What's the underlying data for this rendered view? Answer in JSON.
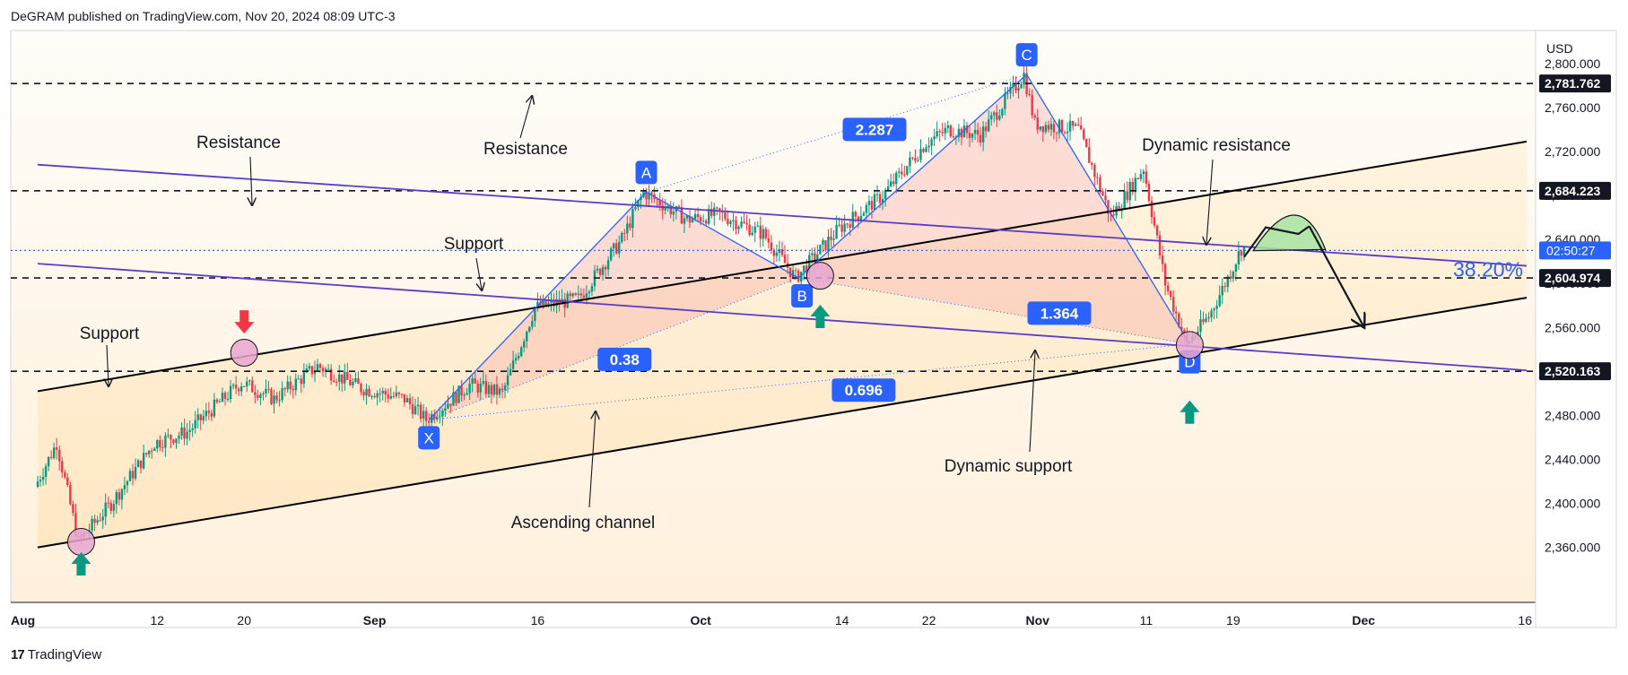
{
  "header": {
    "published": "DeGRAM published on TradingView.com, Nov 20, 2024 08:09 UTC-3"
  },
  "footer": {
    "brand": "TradingView",
    "logo": "17"
  },
  "chart_data": {
    "type": "candlestick",
    "currency": "USD",
    "ylim": [
      2310,
      2830
    ],
    "y_ticks": [
      2360,
      2400,
      2440,
      2480,
      2520,
      2560,
      2600,
      2640,
      2680,
      2720,
      2760,
      2800
    ],
    "y_tick_labels": [
      "2,360.000",
      "2,400.000",
      "2,440.000",
      "2,480.000",
      "2,520.000",
      "2,560.000",
      "2,600.000",
      "2,640.000",
      "2,680.000",
      "2,720.000",
      "2,760.000",
      "2,800.000"
    ],
    "x_ticks": [
      {
        "label": "Aug",
        "date": "2024-08-01"
      },
      {
        "label": "12",
        "date": "2024-08-12"
      },
      {
        "label": "20",
        "date": "2024-08-20"
      },
      {
        "label": "Sep",
        "date": "2024-09-01"
      },
      {
        "label": "16",
        "date": "2024-09-16"
      },
      {
        "label": "Oct",
        "date": "2024-10-01"
      },
      {
        "label": "14",
        "date": "2024-10-14"
      },
      {
        "label": "22",
        "date": "2024-10-22"
      },
      {
        "label": "Nov",
        "date": "2024-11-01"
      },
      {
        "label": "11",
        "date": "2024-11-11"
      },
      {
        "label": "19",
        "date": "2024-11-19"
      },
      {
        "label": "Dec",
        "date": "2024-12-01"
      },
      {
        "label": "16",
        "date": "2024-12-16"
      }
    ],
    "x_range": [
      "2024-08-01",
      "2024-12-16"
    ],
    "price_path": [
      [
        "2024-08-01",
        2415
      ],
      [
        "2024-08-03",
        2455
      ],
      [
        "2024-08-05",
        2365
      ],
      [
        "2024-08-08",
        2400
      ],
      [
        "2024-08-12",
        2455
      ],
      [
        "2024-08-15",
        2465
      ],
      [
        "2024-08-20",
        2510
      ],
      [
        "2024-08-23",
        2495
      ],
      [
        "2024-08-27",
        2525
      ],
      [
        "2024-08-31",
        2505
      ],
      [
        "2024-09-04",
        2495
      ],
      [
        "2024-09-06",
        2476
      ],
      [
        "2024-09-10",
        2508
      ],
      [
        "2024-09-13",
        2500
      ],
      [
        "2024-09-16",
        2578
      ],
      [
        "2024-09-20",
        2586
      ],
      [
        "2024-09-24",
        2640
      ],
      [
        "2024-09-26",
        2683
      ],
      [
        "2024-09-30",
        2658
      ],
      [
        "2024-10-03",
        2663
      ],
      [
        "2024-10-07",
        2645
      ],
      [
        "2024-10-10",
        2605
      ],
      [
        "2024-10-14",
        2650
      ],
      [
        "2024-10-18",
        2680
      ],
      [
        "2024-10-22",
        2728
      ],
      [
        "2024-10-24",
        2740
      ],
      [
        "2024-10-27",
        2735
      ],
      [
        "2024-10-31",
        2790
      ],
      [
        "2024-11-01",
        2745
      ],
      [
        "2024-11-05",
        2740
      ],
      [
        "2024-11-08",
        2660
      ],
      [
        "2024-11-11",
        2705
      ],
      [
        "2024-11-13",
        2600
      ],
      [
        "2024-11-15",
        2545
      ],
      [
        "2024-11-17",
        2570
      ],
      [
        "2024-11-19",
        2610
      ],
      [
        "2024-11-20",
        2632
      ]
    ],
    "horizontal_levels": [
      {
        "price": 2781.762,
        "label": "2,781.762"
      },
      {
        "price": 2684.223,
        "label": "2,684.223"
      },
      {
        "price": 2604.974,
        "label": "2,604.974"
      },
      {
        "price": 2520.163,
        "label": "2,520.163"
      }
    ],
    "current_price": {
      "price": 2630,
      "label": "02:50:27"
    },
    "xabcd_pattern": {
      "points": [
        {
          "label": "X",
          "date": "2024-09-06",
          "price": 2476
        },
        {
          "label": "A",
          "date": "2024-09-26",
          "price": 2683
        },
        {
          "label": "B",
          "date": "2024-10-10",
          "price": 2605
        },
        {
          "label": "C",
          "date": "2024-10-31",
          "price": 2790
        },
        {
          "label": "D",
          "date": "2024-11-15",
          "price": 2545
        }
      ],
      "ratios": [
        {
          "value": "0.38",
          "date": "2024-09-24",
          "price": 2531
        },
        {
          "value": "2.287",
          "date": "2024-10-17",
          "price": 2740
        },
        {
          "value": "1.364",
          "date": "2024-11-03",
          "price": 2573
        },
        {
          "value": "0.696",
          "date": "2024-10-16",
          "price": 2503
        }
      ]
    },
    "channel": {
      "lower": [
        [
          "2024-08-01",
          2360
        ],
        [
          "2024-12-16",
          2587
        ]
      ],
      "upper": [
        [
          "2024-08-01",
          2502
        ],
        [
          "2024-12-16",
          2729
        ]
      ]
    },
    "descending_lines": {
      "resistance": [
        [
          "2024-08-01",
          2708
        ],
        [
          "2024-12-16",
          2616
        ]
      ],
      "support": [
        [
          "2024-08-01",
          2618
        ],
        [
          "2024-12-16",
          2521
        ]
      ]
    },
    "forecast": [
      [
        "2024-11-20",
        2624
      ],
      [
        "2024-11-22",
        2651
      ],
      [
        "2024-11-25",
        2645
      ],
      [
        "2024-11-26",
        2652
      ],
      [
        "2024-12-01",
        2561
      ]
    ],
    "fib_label": "38.20%",
    "annotations": [
      {
        "text": "Resistance",
        "id": "res-left"
      },
      {
        "text": "Resistance",
        "id": "res-top"
      },
      {
        "text": "Support",
        "id": "sup-mid"
      },
      {
        "text": "Support",
        "id": "sup-left"
      },
      {
        "text": "Dynamic resistance",
        "id": "dyn-res"
      },
      {
        "text": "Dynamic support",
        "id": "dyn-sup"
      },
      {
        "text": "Ascending channel",
        "id": "asc-channel"
      }
    ],
    "markers": {
      "up_arrows": [
        [
          "2024-08-05",
          2345
        ],
        [
          "2024-10-12",
          2570
        ],
        [
          "2024-11-15",
          2483
        ]
      ],
      "down_arrows": [
        [
          "2024-08-20",
          2565
        ]
      ],
      "circles": [
        [
          "2024-08-05",
          2365
        ],
        [
          "2024-08-20",
          2537
        ],
        [
          "2024-10-12",
          2607
        ],
        [
          "2024-11-15",
          2544
        ]
      ]
    },
    "colors": {
      "candle_up": "#089981",
      "candle_down": "#f23645",
      "pattern_line": "#2962ff",
      "pattern_label_bg": "#2962ff",
      "channel_line": "#000000",
      "descending_line": "#5b3cc4",
      "current_price": "#2962ff",
      "marker_green": "#089981",
      "marker_red": "#f23645"
    }
  }
}
